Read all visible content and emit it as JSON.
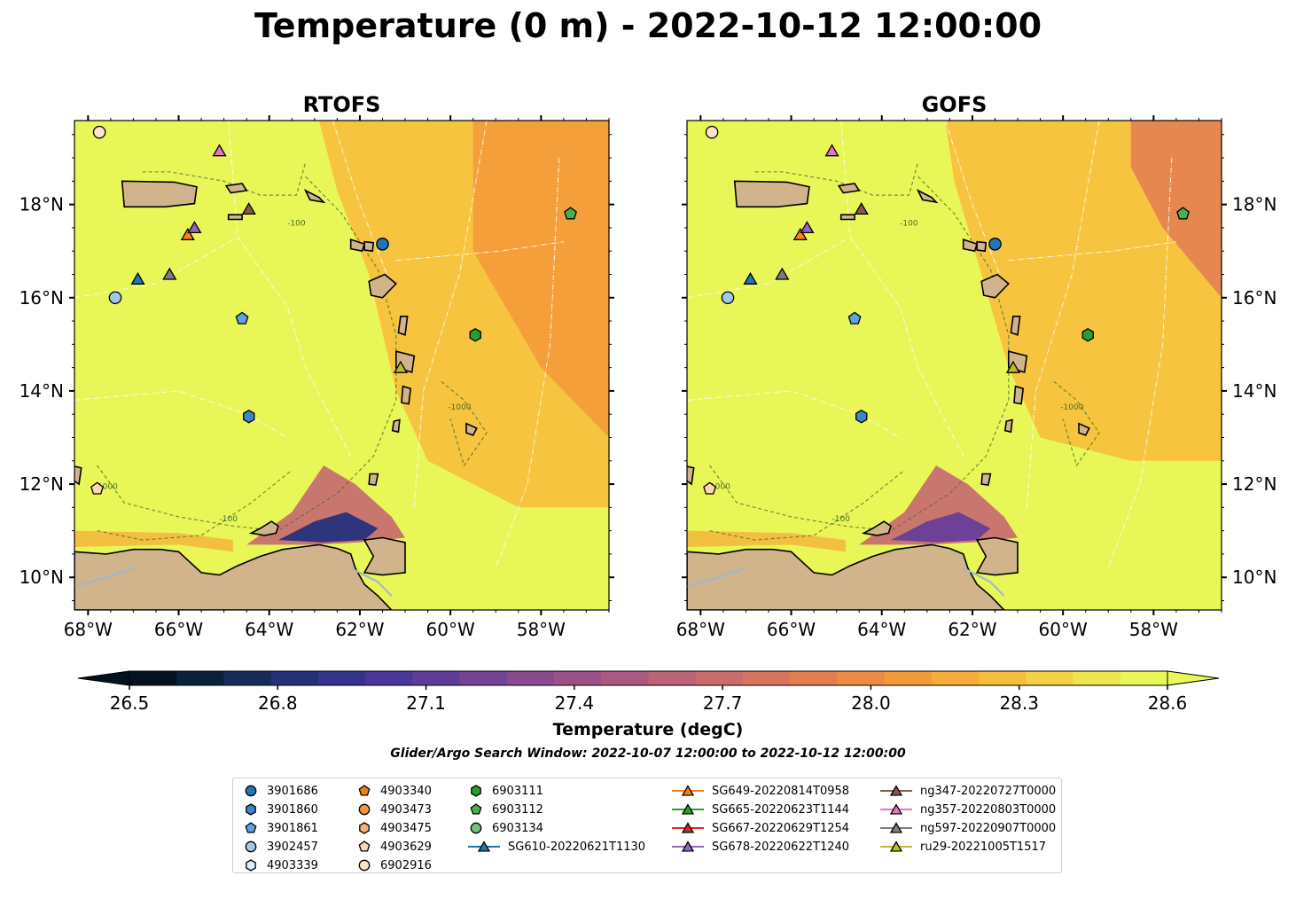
{
  "figure": {
    "title": "Temperature (0 m) - 2022-10-12 12:00:00",
    "search_window": "Glider/Argo Search Window: 2022-10-07 12:00:00 to 2022-10-12 12:00:00"
  },
  "colors": {
    "land": "#d2b48c",
    "coast": "#000000",
    "bathy_contour": "#4a6b2a",
    "eez_lines": "#ffffff",
    "rivers": "#9fb6cf"
  },
  "chart_data": [
    {
      "type": "heatmap",
      "title": "RTOFS",
      "xlabel": "",
      "ylabel": "",
      "xlim": [
        -68.3,
        -56.5
      ],
      "ylim": [
        9.3,
        19.8
      ],
      "x_ticks": [
        -68,
        -66,
        -64,
        -62,
        -60,
        -58
      ],
      "x_tick_labels": [
        "68°W",
        "66°W",
        "64°W",
        "62°W",
        "60°W",
        "58°W"
      ],
      "y_ticks": [
        10,
        12,
        14,
        16,
        18
      ],
      "y_tick_labels": [
        "10°N",
        "12°N",
        "14°N",
        "16°N",
        "18°N"
      ],
      "y_tick_side": "left",
      "contour_labels": [
        "-100",
        "-1000"
      ],
      "field_description": "sea surface temperature mostly 28.6+ degC in Caribbean; cooler 26.5–27.5 degC plume near Orinoco/Trinidad (~11°N, 62°W); 28.0–28.4 degC east of Lesser Antilles"
    },
    {
      "type": "heatmap",
      "title": "GOFS",
      "xlabel": "",
      "ylabel": "",
      "xlim": [
        -68.3,
        -56.5
      ],
      "ylim": [
        9.3,
        19.8
      ],
      "x_ticks": [
        -68,
        -66,
        -64,
        -62,
        -60,
        -58
      ],
      "x_tick_labels": [
        "68°W",
        "66°W",
        "64°W",
        "62°W",
        "60°W",
        "58°W"
      ],
      "y_ticks": [
        10,
        12,
        14,
        16,
        18
      ],
      "y_tick_labels": [
        "10°N",
        "12°N",
        "14°N",
        "16°N",
        "18°N"
      ],
      "y_tick_side": "right",
      "contour_labels": [
        "-100",
        "-1000"
      ],
      "field_description": "sea surface temperature mostly 28.6+ degC in Caribbean; cooler plume near Trinidad; warmer 27.8–28.2 degC in NE corner"
    }
  ],
  "colorbar": {
    "label": "Temperature (degC)",
    "min": 26.4,
    "max": 28.6,
    "ticks": [
      26.5,
      26.8,
      27.1,
      27.4,
      27.7,
      28.0,
      28.3,
      28.6
    ],
    "tick_labels": [
      "26.5",
      "26.8",
      "27.1",
      "27.4",
      "27.7",
      "28.0",
      "28.3",
      "28.6"
    ],
    "levels": 22,
    "extend": "both",
    "colormap_stops": [
      "#03121e",
      "#0f2b4d",
      "#27317f",
      "#47359b",
      "#6a3f99",
      "#8b4a8f",
      "#a85582",
      "#c26575",
      "#d7735f",
      "#ea8448",
      "#f59c37",
      "#f8b83a",
      "#f2d94a",
      "#e8f757"
    ]
  },
  "observations": [
    {
      "name": "3901686",
      "marker": "circle",
      "color": "#1f77b4",
      "lon": -61.5,
      "lat": 17.15,
      "legend_col": 0
    },
    {
      "name": "3901860",
      "marker": "hexagon",
      "color": "#3a86c8",
      "lon": -64.45,
      "lat": 13.45,
      "legend_col": 0
    },
    {
      "name": "3901861",
      "marker": "pentagon",
      "color": "#5fa2dd",
      "lon": -64.6,
      "lat": 15.55,
      "legend_col": 0
    },
    {
      "name": "3902457",
      "marker": "circle",
      "color": "#9ecae9",
      "lon": -67.4,
      "lat": 16.0,
      "legend_col": 0
    },
    {
      "name": "4903339",
      "marker": "hexagon",
      "color": "#dcebf8",
      "lon": null,
      "lat": null,
      "legend_col": 0
    },
    {
      "name": "4903340",
      "marker": "pentagon",
      "color": "#f07f13",
      "lon": null,
      "lat": null,
      "legend_col": 1
    },
    {
      "name": "4903473",
      "marker": "circle",
      "color": "#f9963e",
      "lon": null,
      "lat": null,
      "legend_col": 1
    },
    {
      "name": "4903475",
      "marker": "hexagon",
      "color": "#fbb071",
      "lon": null,
      "lat": null,
      "legend_col": 1
    },
    {
      "name": "4903629",
      "marker": "pentagon",
      "color": "#fdd5b0",
      "lon": -67.8,
      "lat": 11.9,
      "legend_col": 1
    },
    {
      "name": "6902916",
      "marker": "circle",
      "color": "#fde4c8",
      "lon": -67.75,
      "lat": 19.55,
      "legend_col": 1
    },
    {
      "name": "6903111",
      "marker": "hexagon",
      "color": "#2c9c2c",
      "lon": -59.45,
      "lat": 15.2,
      "legend_col": 2
    },
    {
      "name": "6903112",
      "marker": "pentagon",
      "color": "#4caf4c",
      "lon": -57.35,
      "lat": 17.8,
      "legend_col": 2
    },
    {
      "name": "6903134",
      "marker": "circle",
      "color": "#73c476",
      "lon": null,
      "lat": null,
      "legend_col": 2
    },
    {
      "name": "SG610-20220621T1130",
      "marker": "triangle",
      "color": "#1f77b4",
      "lon": -66.9,
      "lat": 16.4,
      "legend_col": 2
    },
    {
      "name": "SG649-20220814T0958",
      "marker": "triangle",
      "color": "#ff7f0e",
      "lon": -65.8,
      "lat": 17.35,
      "legend_col": 3
    },
    {
      "name": "SG665-20220623T1144",
      "marker": "triangle",
      "color": "#2ca02c",
      "lon": null,
      "lat": null,
      "legend_col": 3
    },
    {
      "name": "SG667-20220629T1254",
      "marker": "triangle",
      "color": "#d62728",
      "lon": null,
      "lat": null,
      "legend_col": 3
    },
    {
      "name": "SG678-20220622T1240",
      "marker": "triangle",
      "color": "#9467bd",
      "lon": -65.65,
      "lat": 17.5,
      "legend_col": 3
    },
    {
      "name": "ng347-20220727T0000",
      "marker": "triangle",
      "color": "#8c564b",
      "lon": -64.45,
      "lat": 17.9,
      "legend_col": 4
    },
    {
      "name": "ng357-20220803T0000",
      "marker": "triangle",
      "color": "#e377c2",
      "lon": -65.1,
      "lat": 19.15,
      "legend_col": 4
    },
    {
      "name": "ng597-20220907T0000",
      "marker": "triangle",
      "color": "#7f7f7f",
      "lon": -66.2,
      "lat": 16.5,
      "legend_col": 4
    },
    {
      "name": "ru29-20221005T1517",
      "marker": "triangle",
      "color": "#bcbd22",
      "lon": -61.1,
      "lat": 14.5,
      "legend_col": 4
    }
  ]
}
